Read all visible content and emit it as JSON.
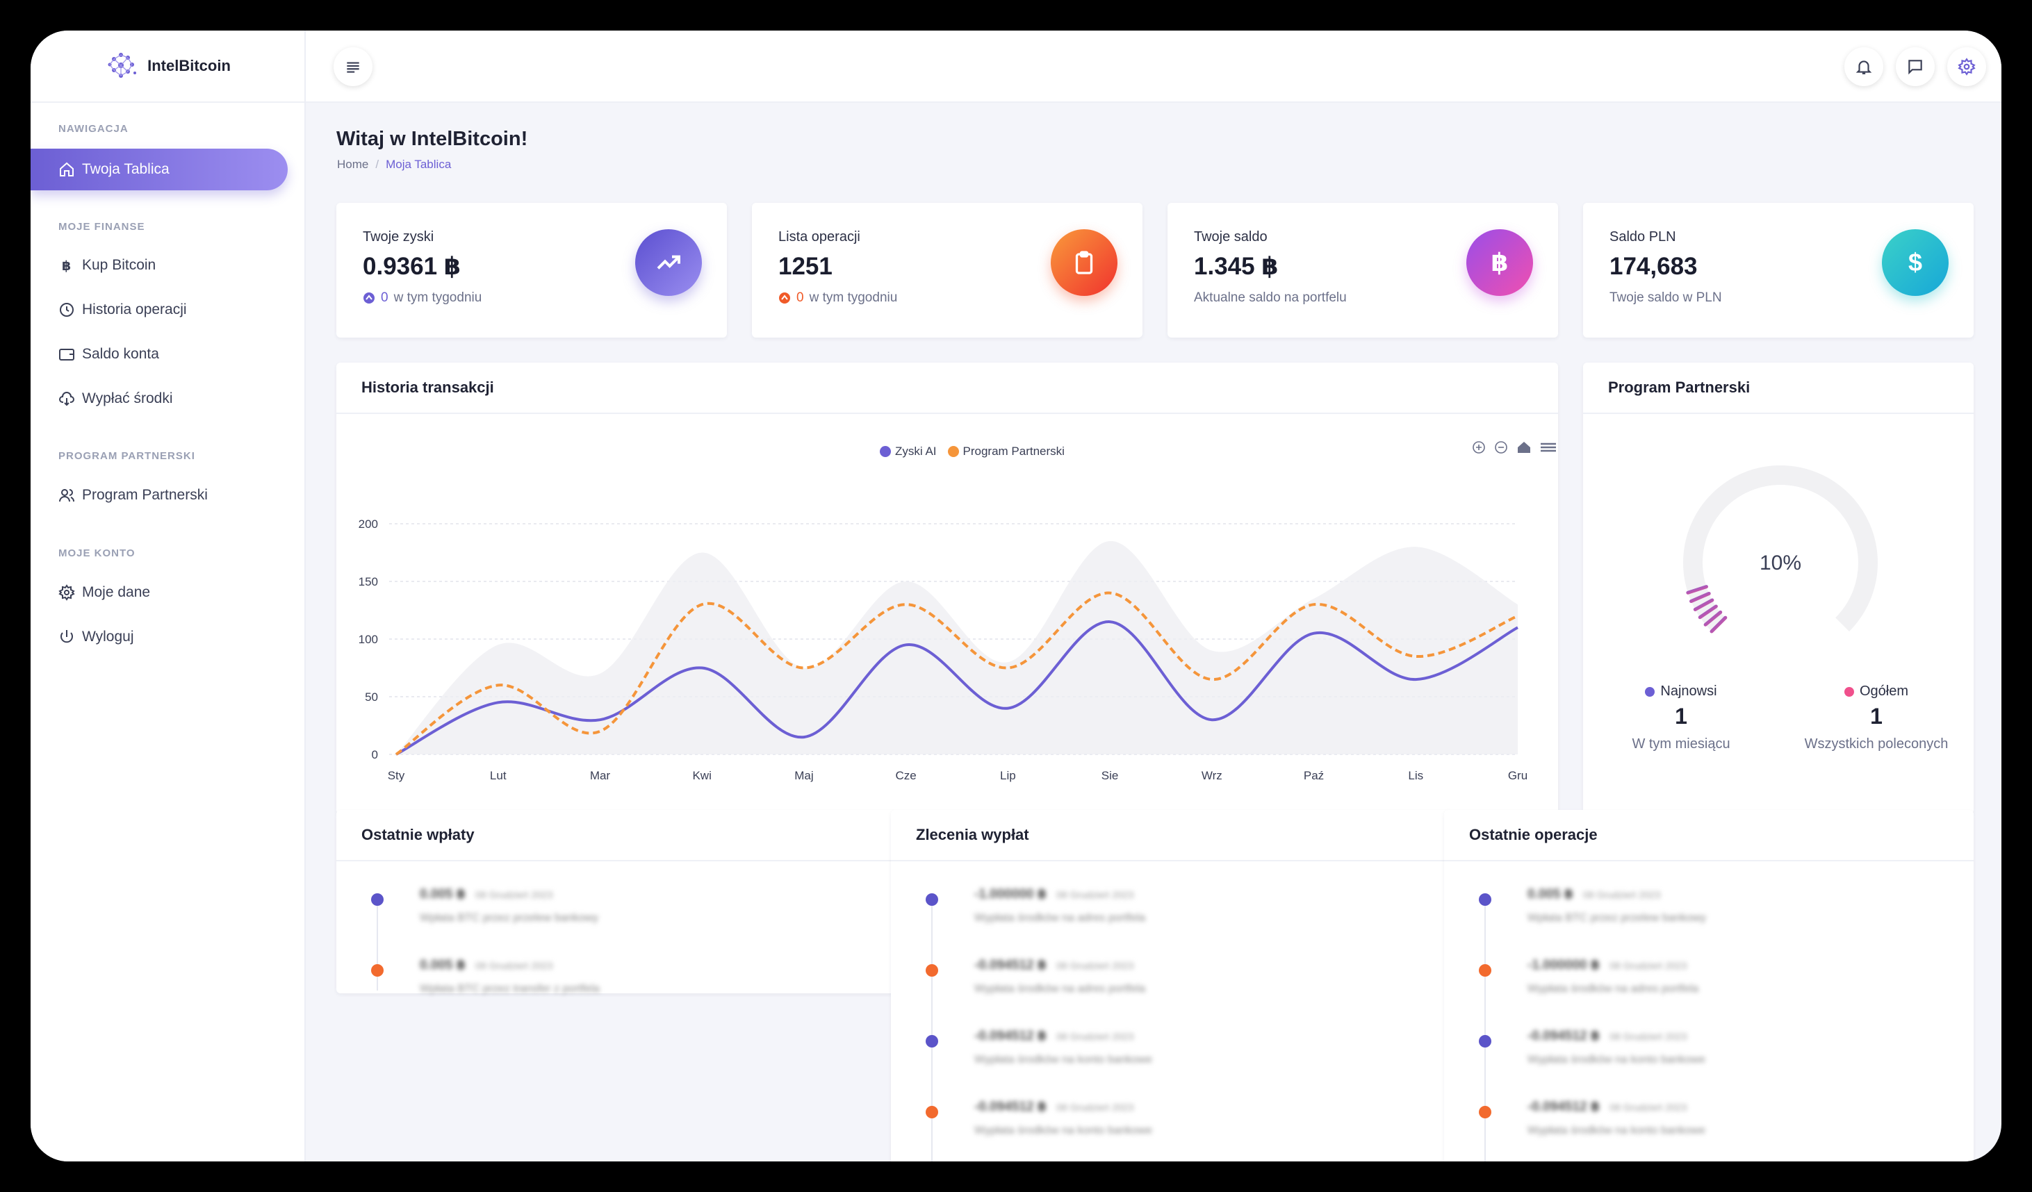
{
  "app": {
    "name": "IntelBitcoin"
  },
  "sidebar": {
    "sections": [
      {
        "title": "NAWIGACJA"
      },
      {
        "title": "MOJE FINANSE"
      },
      {
        "title": "PROGRAM PARTNERSKI"
      },
      {
        "title": "MOJE KONTO"
      }
    ],
    "items": [
      {
        "label": "Twoja Tablica",
        "icon": "home-icon",
        "active": true
      },
      {
        "label": "Kup Bitcoin",
        "icon": "bitcoin-icon"
      },
      {
        "label": "Historia operacji",
        "icon": "clock-icon"
      },
      {
        "label": "Saldo konta",
        "icon": "wallet-icon"
      },
      {
        "label": "Wypłać środki",
        "icon": "cloud-download-icon"
      },
      {
        "label": "Program Partnerski",
        "icon": "users-icon"
      },
      {
        "label": "Moje dane",
        "icon": "gear-icon"
      },
      {
        "label": "Wyloguj",
        "icon": "power-icon"
      }
    ]
  },
  "page": {
    "title": "Witaj w IntelBitcoin!",
    "breadcrumb": [
      "Home",
      "Moja Tablica"
    ]
  },
  "stats": [
    {
      "label": "Twoje zyski",
      "value": "0.9361 ฿",
      "sub_value": "0",
      "sub": "w tym tygodniu",
      "icon": "trending-up-icon",
      "color": "#6c5fd4"
    },
    {
      "label": "Lista operacji",
      "value": "1251",
      "sub_value": "0",
      "sub": "w tym tygodniu",
      "icon": "clipboard-icon",
      "color": "#f05a28"
    },
    {
      "label": "Twoje saldo",
      "value": "1.345 ฿",
      "sub": "Aktualne saldo na portfelu",
      "icon": "bitcoin-icon",
      "icon_text": "฿",
      "color": "#c24de0"
    },
    {
      "label": "Saldo PLN",
      "value": "174,683",
      "sub": "Twoje saldo w PLN",
      "icon": "dollar-icon",
      "icon_text": "$",
      "color": "#1cc0c9"
    }
  ],
  "history_card": {
    "title": "Historia transakcji"
  },
  "partner_card": {
    "title": "Program Partnerski",
    "gauge_percent": 10,
    "gauge_label": "10%",
    "stats": [
      {
        "label": "Najnowsi",
        "value": "1",
        "sub": "W tym miesiącu",
        "color": "#6c5fd4"
      },
      {
        "label": "Ogółem",
        "value": "1",
        "sub": "Wszystkich poleconych",
        "color": "#f0508c"
      }
    ]
  },
  "chart_data": {
    "type": "line",
    "categories": [
      "Sty",
      "Lut",
      "Mar",
      "Kwi",
      "Maj",
      "Cze",
      "Lip",
      "Sie",
      "Wrz",
      "Paź",
      "Lis",
      "Gru"
    ],
    "ylim": [
      0,
      200
    ],
    "yticks": [
      0,
      50,
      100,
      150,
      200
    ],
    "grid": true,
    "legend_position": "top-center",
    "series": [
      {
        "name": "Zyski AI",
        "color": "#6c5fd4",
        "dashed": false,
        "values": [
          0,
          45,
          30,
          75,
          15,
          95,
          40,
          115,
          30,
          105,
          65,
          110
        ]
      },
      {
        "name": "Program Partnerski",
        "color": "#f5953a",
        "dashed": true,
        "values": [
          0,
          60,
          20,
          130,
          75,
          130,
          75,
          140,
          65,
          130,
          85,
          120
        ]
      }
    ],
    "background_area": [
      0,
      95,
      70,
      175,
      75,
      150,
      80,
      185,
      90,
      135,
      180,
      130
    ]
  },
  "lists": [
    {
      "title": "Ostatnie wpłaty",
      "items": [
        {
          "amount": "0.005 ฿",
          "date": "08 Grudzień 2023",
          "desc": "Wpłata BTC przez przelew bankowy",
          "color": "#5b54c9"
        },
        {
          "amount": "0.005 ฿",
          "date": "08 Grudzień 2023",
          "desc": "Wpłata BTC przez transfer z portfela",
          "color": "#f26a2e"
        }
      ]
    },
    {
      "title": "Zlecenia wypłat",
      "items": [
        {
          "amount": "-1.000000 ฿",
          "date": "08 Grudzień 2023",
          "desc": "Wypłata środków na adres portfela",
          "color": "#5b54c9"
        },
        {
          "amount": "-0.094512 ฿",
          "date": "08 Grudzień 2023",
          "desc": "Wypłata środków na adres portfela",
          "color": "#f26a2e"
        },
        {
          "amount": "-0.094512 ฿",
          "date": "08 Grudzień 2023",
          "desc": "Wypłata środków na konto bankowe",
          "color": "#5b54c9"
        },
        {
          "amount": "-0.094512 ฿",
          "date": "08 Grudzień 2023",
          "desc": "Wypłata środków na konto bankowe",
          "color": "#f26a2e"
        }
      ]
    },
    {
      "title": "Ostatnie operacje",
      "items": [
        {
          "amount": "0.005 ฿",
          "date": "08 Grudzień 2023",
          "desc": "Wpłata BTC przez przelew bankowy",
          "color": "#5b54c9"
        },
        {
          "amount": "-1.000000 ฿",
          "date": "08 Grudzień 2023",
          "desc": "Wypłata środków na adres portfela",
          "color": "#f26a2e"
        },
        {
          "amount": "-0.094512 ฿",
          "date": "08 Grudzień 2023",
          "desc": "Wypłata środków na konto bankowe",
          "color": "#5b54c9"
        },
        {
          "amount": "-0.094512 ฿",
          "date": "08 Grudzień 2023",
          "desc": "Wypłata środków na konto bankowe",
          "color": "#f26a2e"
        }
      ]
    }
  ]
}
